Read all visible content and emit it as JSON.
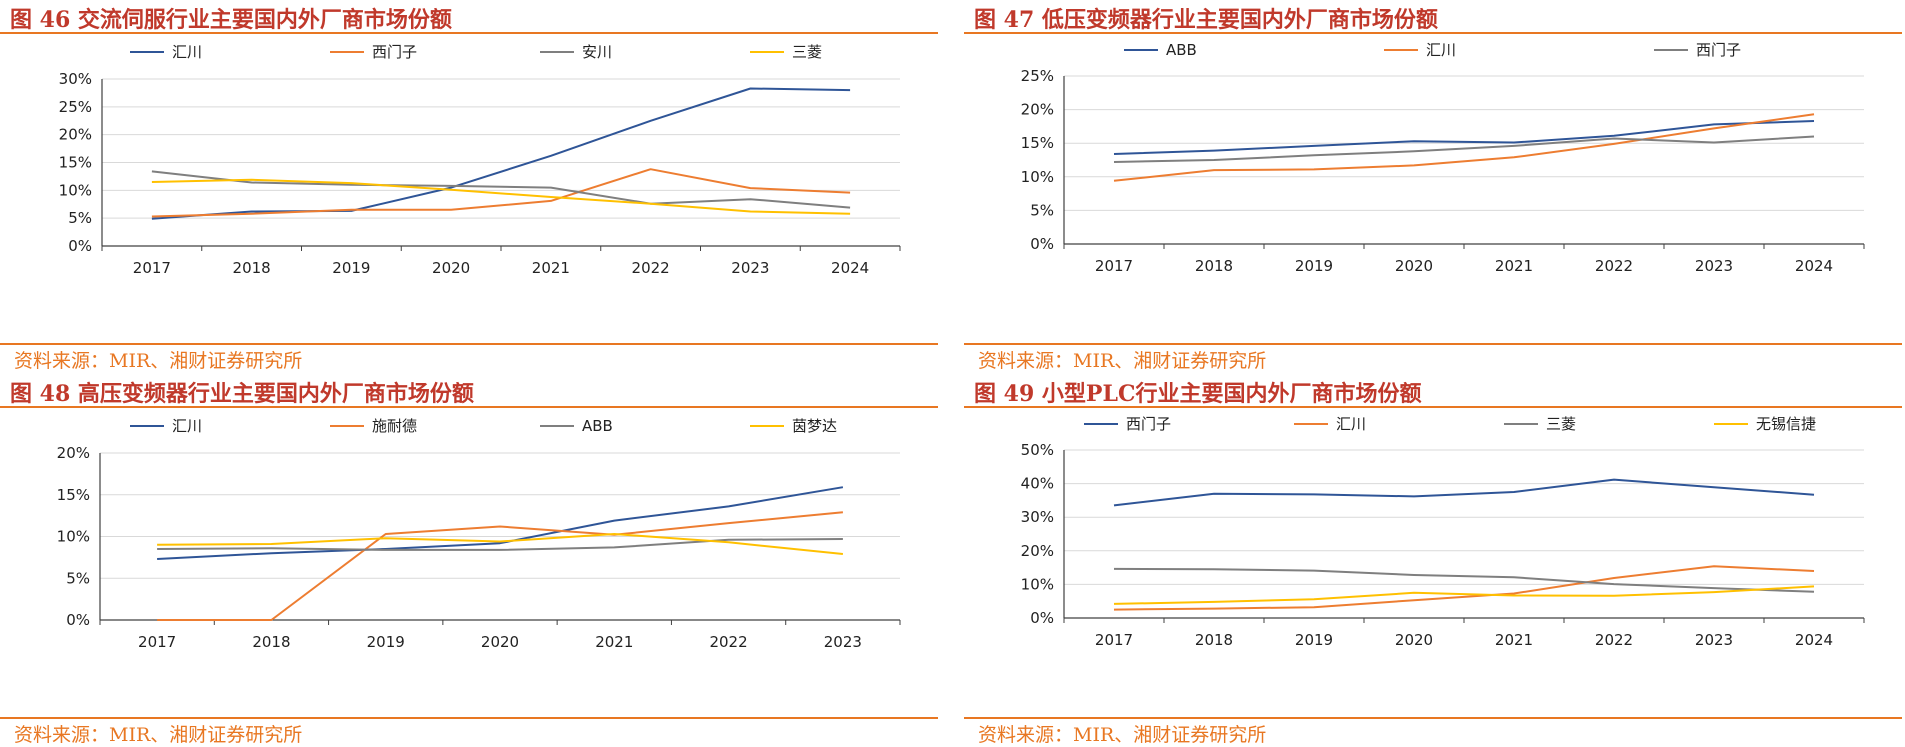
{
  "colors": {
    "title": "#c0392b",
    "accent": "#e87722"
  },
  "panels": [
    {
      "title": "图 46 交流伺服行业主要国内外厂商市场份额",
      "source": "资料来源：MIR、湘财证券研究所"
    },
    {
      "title": "图 47 低压变频器行业主要国内外厂商市场份额",
      "source": "资料来源：MIR、湘财证券研究所"
    },
    {
      "title": "图 48 高压变频器行业主要国内外厂商市场份额",
      "source": "资料来源：MIR、湘财证券研究所"
    },
    {
      "title": "图 49 小型PLC行业主要国内外厂商市场份额",
      "source": "资料来源：MIR、湘财证券研究所"
    }
  ],
  "chart_data": [
    {
      "type": "line",
      "title": "图 46 交流伺服行业主要国内外厂商市场份额",
      "xlabel": "",
      "ylabel": "",
      "x": [
        "2017",
        "2018",
        "2019",
        "2020",
        "2021",
        "2022",
        "2023",
        "2024"
      ],
      "yticks": [
        "0%",
        "5%",
        "10%",
        "15%",
        "20%",
        "25%",
        "30%"
      ],
      "ylim": [
        0,
        30
      ],
      "grid": true,
      "legend": "top",
      "series": [
        {
          "name": "汇川",
          "color": "#2f5597",
          "values": [
            4.9,
            6.2,
            6.3,
            10.5,
            16.2,
            22.5,
            28.3,
            28.0
          ]
        },
        {
          "name": "西门子",
          "color": "#ed7d31",
          "values": [
            5.3,
            5.8,
            6.5,
            6.5,
            8.1,
            13.8,
            10.4,
            9.6
          ]
        },
        {
          "name": "安川",
          "color": "#7f7f7f",
          "values": [
            13.4,
            11.4,
            11.0,
            10.8,
            10.5,
            7.6,
            8.4,
            6.9
          ]
        },
        {
          "name": "三菱",
          "color": "#ffc000",
          "values": [
            11.5,
            11.9,
            11.3,
            10.1,
            8.8,
            7.6,
            6.2,
            5.8
          ]
        }
      ]
    },
    {
      "type": "line",
      "title": "图 47 低压变频器行业主要国内外厂商市场份额",
      "xlabel": "",
      "ylabel": "",
      "x": [
        "2017",
        "2018",
        "2019",
        "2020",
        "2021",
        "2022",
        "2023",
        "2024"
      ],
      "yticks": [
        "0%",
        "5%",
        "10%",
        "15%",
        "20%",
        "25%"
      ],
      "ylim": [
        0,
        25
      ],
      "grid": true,
      "legend": "top",
      "series": [
        {
          "name": "ABB",
          "color": "#2f5597",
          "values": [
            13.4,
            13.9,
            14.6,
            15.3,
            15.1,
            16.1,
            17.8,
            18.3
          ]
        },
        {
          "name": "汇川",
          "color": "#ed7d31",
          "values": [
            9.4,
            11.0,
            11.1,
            11.7,
            12.9,
            14.9,
            17.2,
            19.3
          ]
        },
        {
          "name": "西门子",
          "color": "#7f7f7f",
          "values": [
            12.2,
            12.5,
            13.2,
            13.8,
            14.6,
            15.7,
            15.1,
            16.0
          ]
        }
      ]
    },
    {
      "type": "line",
      "title": "图 48 高压变频器行业主要国内外厂商市场份额",
      "xlabel": "",
      "ylabel": "",
      "x": [
        "2017",
        "2018",
        "2019",
        "2020",
        "2021",
        "2022",
        "2023"
      ],
      "yticks": [
        "0%",
        "5%",
        "10%",
        "15%",
        "20%"
      ],
      "ylim": [
        0,
        20
      ],
      "grid": true,
      "legend": "top",
      "series": [
        {
          "name": "汇川",
          "color": "#2f5597",
          "values": [
            7.3,
            8.0,
            8.5,
            9.2,
            11.9,
            13.6,
            15.9
          ]
        },
        {
          "name": "施耐德",
          "color": "#ed7d31",
          "values": [
            0,
            0,
            10.3,
            11.2,
            10.2,
            11.6,
            12.9
          ]
        },
        {
          "name": "ABB",
          "color": "#7f7f7f",
          "values": [
            8.5,
            8.6,
            8.4,
            8.4,
            8.7,
            9.6,
            9.7
          ]
        },
        {
          "name": "茵梦达",
          "color": "#ffc000",
          "values": [
            9.0,
            9.1,
            9.8,
            9.4,
            10.3,
            9.3,
            7.9
          ]
        }
      ]
    },
    {
      "type": "line",
      "title": "图 49 小型PLC行业主要国内外厂商市场份额",
      "xlabel": "",
      "ylabel": "",
      "x": [
        "2017",
        "2018",
        "2019",
        "2020",
        "2021",
        "2022",
        "2023",
        "2024"
      ],
      "yticks": [
        "0%",
        "10%",
        "20%",
        "30%",
        "40%",
        "50%"
      ],
      "ylim": [
        0,
        50
      ],
      "grid": true,
      "legend": "top",
      "series": [
        {
          "name": "西门子",
          "color": "#2f5597",
          "values": [
            33.5,
            37.0,
            36.8,
            36.2,
            37.5,
            41.2,
            38.9,
            36.7
          ]
        },
        {
          "name": "汇川",
          "color": "#ed7d31",
          "values": [
            2.5,
            2.8,
            3.2,
            5.3,
            7.3,
            11.9,
            15.4,
            14.0
          ]
        },
        {
          "name": "三菱",
          "color": "#7f7f7f",
          "values": [
            14.6,
            14.5,
            14.1,
            12.8,
            12.1,
            10.1,
            8.9,
            7.8
          ]
        },
        {
          "name": "无锡信捷",
          "color": "#ffc000",
          "values": [
            4.2,
            4.8,
            5.6,
            7.5,
            6.7,
            6.6,
            7.7,
            9.4
          ]
        }
      ]
    }
  ]
}
